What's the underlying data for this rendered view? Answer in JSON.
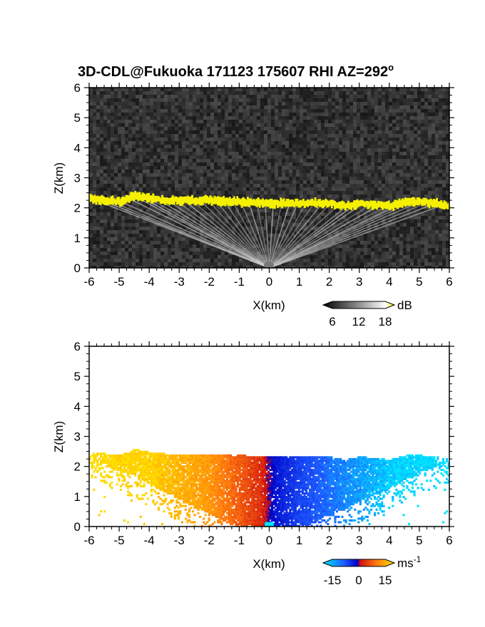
{
  "title": "3D-CDL@Fukuoka 171123 175607 RHI AZ=292",
  "title_superscript": "o",
  "chart_data": [
    {
      "type": "heatmap",
      "quantity": "reflectivity",
      "xlabel": "X(km)",
      "ylabel": "Z(km)",
      "xlim": [
        -6,
        6
      ],
      "ylim": [
        0,
        6
      ],
      "xticks": [
        "-6",
        "-5",
        "-4",
        "-3",
        "-2",
        "-1",
        "0",
        "1",
        "2",
        "3",
        "4",
        "5",
        "6"
      ],
      "yticks": [
        "0",
        "1",
        "2",
        "3",
        "4",
        "5",
        "6"
      ],
      "background_color": "#2e2e2e",
      "cloud_base_color": "#f5f000",
      "cloud_base_height": [
        {
          "x": -6.0,
          "z": 2.3
        },
        {
          "x": -5.5,
          "z": 2.25
        },
        {
          "x": -5.0,
          "z": 2.2
        },
        {
          "x": -4.5,
          "z": 2.4
        },
        {
          "x": -4.0,
          "z": 2.3
        },
        {
          "x": -3.5,
          "z": 2.25
        },
        {
          "x": -3.0,
          "z": 2.25
        },
        {
          "x": -2.0,
          "z": 2.25
        },
        {
          "x": -1.0,
          "z": 2.2
        },
        {
          "x": 0.0,
          "z": 2.15
        },
        {
          "x": 1.0,
          "z": 2.15
        },
        {
          "x": 2.0,
          "z": 2.15
        },
        {
          "x": 2.5,
          "z": 2.05
        },
        {
          "x": 3.0,
          "z": 2.15
        },
        {
          "x": 3.5,
          "z": 2.1
        },
        {
          "x": 4.0,
          "z": 2.05
        },
        {
          "x": 4.5,
          "z": 2.2
        },
        {
          "x": 5.0,
          "z": 2.2
        },
        {
          "x": 5.5,
          "z": 2.15
        },
        {
          "x": 6.0,
          "z": 2.05
        }
      ],
      "colorbar": {
        "unit": "dB",
        "ticks": [
          "6",
          "12",
          "18"
        ],
        "stops": [
          "#000000",
          "#ffffff",
          "#f5f000"
        ]
      }
    },
    {
      "type": "heatmap",
      "quantity": "doppler velocity",
      "xlabel": "X(km)",
      "ylabel": "Z(km)",
      "xlim": [
        -6,
        6
      ],
      "ylim": [
        0,
        6
      ],
      "xticks": [
        "-6",
        "-5",
        "-4",
        "-3",
        "-2",
        "-1",
        "0",
        "1",
        "2",
        "3",
        "4",
        "5",
        "6"
      ],
      "yticks": [
        "0",
        "1",
        "2",
        "3",
        "4",
        "5",
        "6"
      ],
      "velocity_range": [
        -15,
        15
      ],
      "velocity_profile": [
        {
          "x": -6.0,
          "v": 15
        },
        {
          "x": -4.0,
          "v": 14
        },
        {
          "x": -3.0,
          "v": 12
        },
        {
          "x": -2.0,
          "v": 10
        },
        {
          "x": -1.0,
          "v": 6
        },
        {
          "x": -0.3,
          "v": 3
        },
        {
          "x": 0.2,
          "v": -3
        },
        {
          "x": 1.0,
          "v": -7
        },
        {
          "x": 2.0,
          "v": -10
        },
        {
          "x": 3.0,
          "v": -12
        },
        {
          "x": 4.0,
          "v": -14
        },
        {
          "x": 6.0,
          "v": -15
        }
      ],
      "colorbar": {
        "unit": "ms",
        "unit_exponent": "-1",
        "ticks": [
          "-15",
          "0",
          "15"
        ],
        "stops": [
          "#00e5ff",
          "#1f5bff",
          "#0000c8",
          "#d01010",
          "#ff7a10",
          "#ffe000"
        ]
      }
    }
  ]
}
